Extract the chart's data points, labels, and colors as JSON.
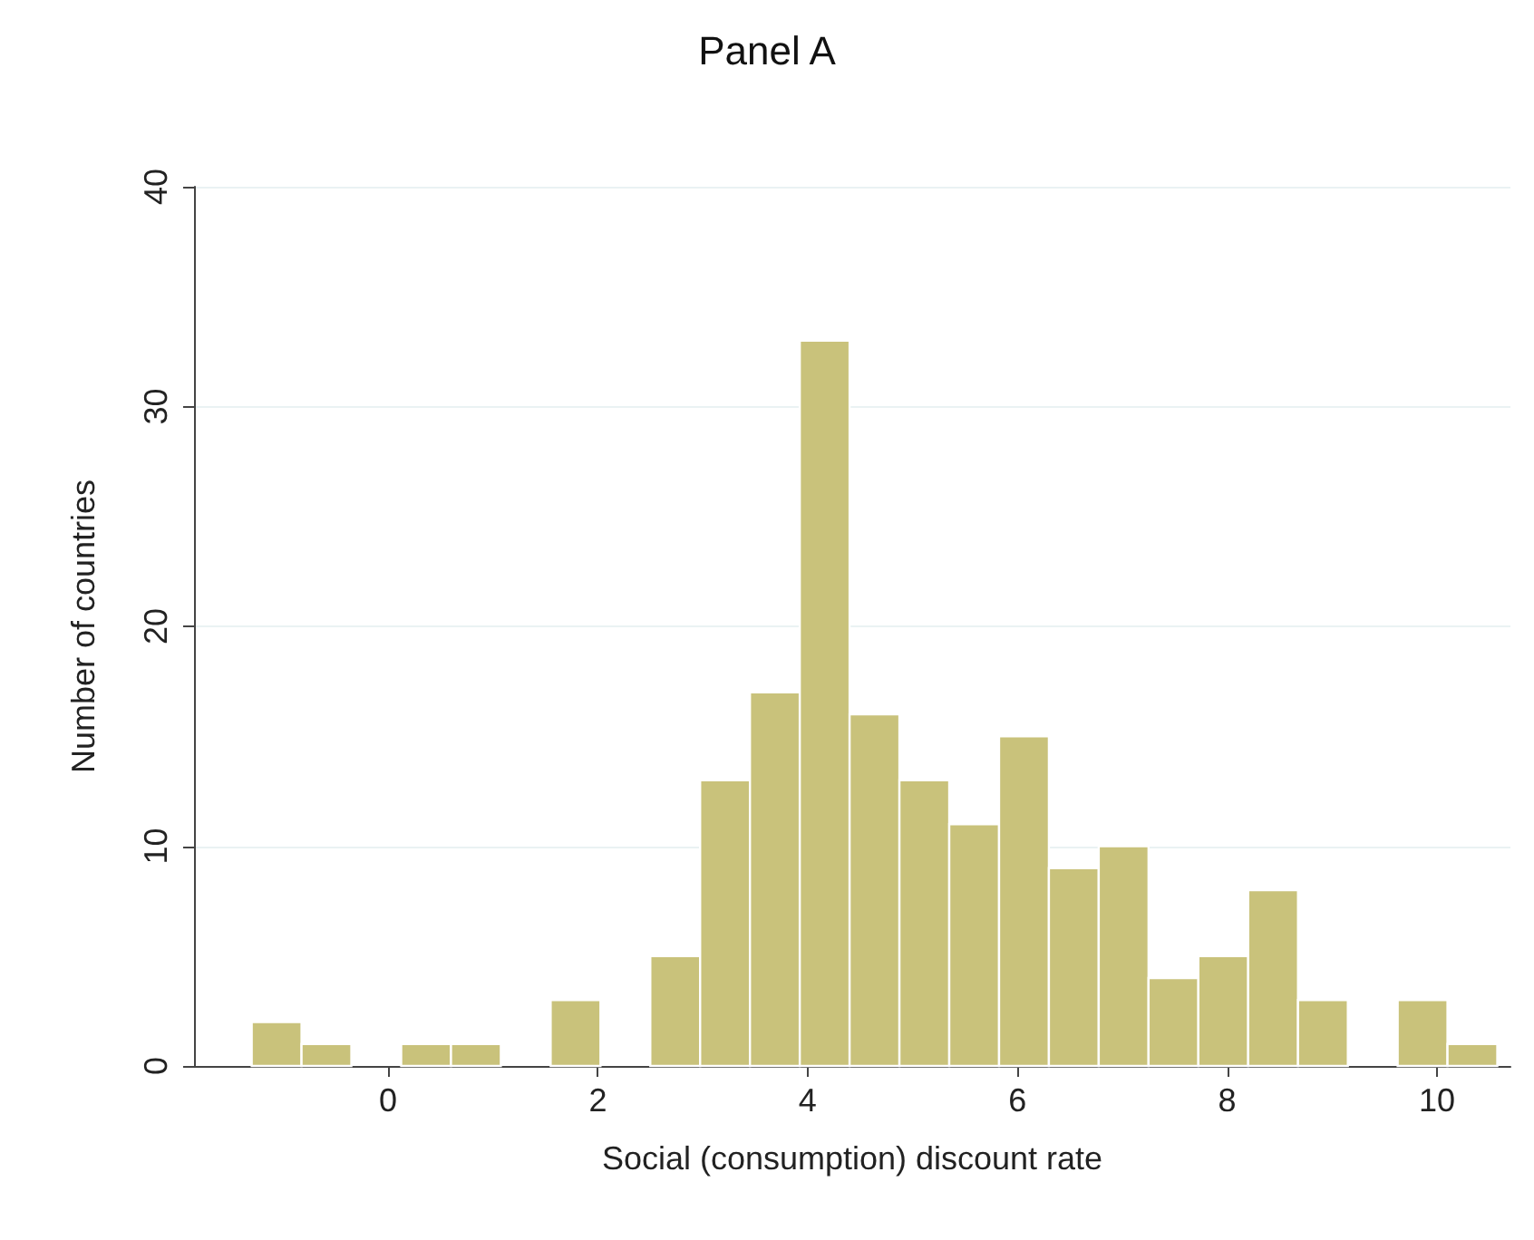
{
  "chart_data": {
    "type": "histogram",
    "title": "Panel A",
    "xlabel": "Social (consumption) discount rate",
    "ylabel": "Number of countries",
    "bins": [
      -1.3,
      -0.825,
      -0.35,
      0.125,
      0.6,
      1.075,
      1.55,
      2.025,
      2.5,
      2.975,
      3.45,
      3.925,
      4.4,
      4.875,
      5.35,
      5.825,
      6.3,
      6.775,
      7.25,
      7.725,
      8.2,
      8.675,
      9.15,
      9.625,
      10.1,
      10.575
    ],
    "values": [
      2,
      1,
      0,
      1,
      1,
      0,
      3,
      0,
      5,
      13,
      17,
      33,
      16,
      13,
      11,
      15,
      9,
      10,
      4,
      5,
      8,
      3,
      0,
      3,
      1
    ],
    "color": "#c9c27b",
    "xlim": [
      -1.85,
      10.7
    ],
    "xticks": [
      0,
      2,
      4,
      6,
      8,
      10
    ],
    "ylim": [
      0,
      40
    ],
    "yticks": [
      0,
      10,
      20,
      30,
      40
    ],
    "grid": "y"
  }
}
